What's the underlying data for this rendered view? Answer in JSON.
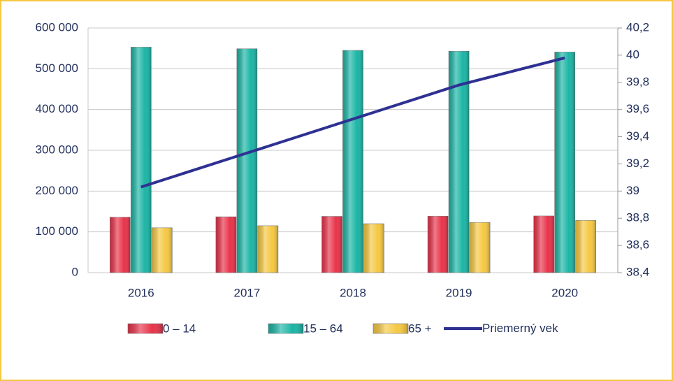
{
  "chart_data": {
    "type": "bar",
    "categories": [
      "2016",
      "2017",
      "2018",
      "2019",
      "2020"
    ],
    "series": [
      {
        "name": "0 – 14",
        "color": "#e8334a",
        "values": [
          136000,
          137000,
          138000,
          138500,
          139000
        ]
      },
      {
        "name": "15 – 64",
        "color": "#1bb5a5",
        "values": [
          553000,
          549000,
          545000,
          543000,
          541000
        ]
      },
      {
        "name": "65 +",
        "color": "#f5c842",
        "values": [
          110000,
          115000,
          120000,
          123000,
          128000
        ]
      },
      {
        "name": "Priemerný vek",
        "type": "line",
        "axis": "y2",
        "color": "#2e3192",
        "values": [
          39.03,
          39.28,
          39.53,
          39.78,
          39.98
        ]
      }
    ],
    "ylim": [
      0,
      600000
    ],
    "yticks": [
      0,
      {
        "value": 100000,
        "label": "100 000"
      },
      {
        "value": 200000,
        "label": "200 000"
      },
      {
        "value": 300000,
        "label": "300 000"
      },
      {
        "value": 400000,
        "label": "400 000"
      },
      {
        "value": 500000,
        "label": "500 000"
      },
      {
        "value": 600000,
        "label": "600 000"
      }
    ],
    "y2lim": [
      38.4,
      40.2
    ],
    "y2ticks": [
      {
        "value": 38.4,
        "label": "38,4"
      },
      {
        "value": 38.6,
        "label": "38,6"
      },
      {
        "value": 38.8,
        "label": "38,8"
      },
      39,
      {
        "value": 39.2,
        "label": "39,2"
      },
      {
        "value": 39.4,
        "label": "39,4"
      },
      {
        "value": 39.6,
        "label": "39,6"
      },
      {
        "value": 39.8,
        "label": "39,8"
      },
      40,
      {
        "value": 40.2,
        "label": "40,2"
      }
    ],
    "grid": true,
    "legend": "bottom"
  }
}
